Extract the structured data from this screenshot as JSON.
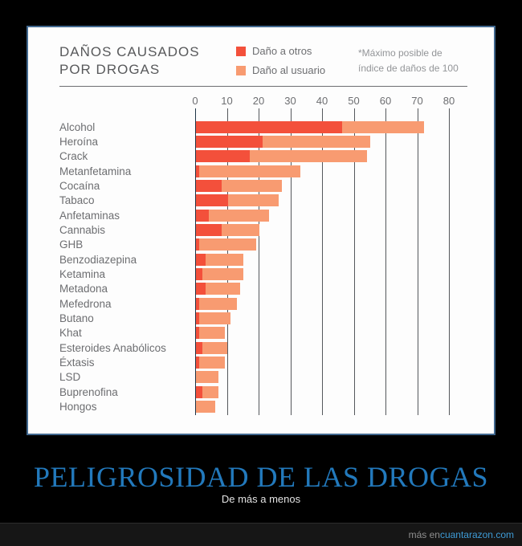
{
  "panel": {
    "title_line1": "DAÑOS CAUSADOS",
    "title_line2": "POR DROGAS",
    "note_line1": "*Máximo posible de",
    "note_line2": "índice de daños de 100"
  },
  "chart_data": {
    "type": "bar",
    "orientation": "horizontal",
    "stacked": true,
    "title": "DAÑOS CAUSADOS POR DROGAS",
    "note": "*Máximo posible de índice de daños de 100",
    "xlim": [
      0,
      95
    ],
    "xticks": [
      0,
      10,
      20,
      30,
      40,
      50,
      60,
      70,
      80
    ],
    "grid": "vertical",
    "legend_position": "top",
    "categories": [
      "Alcohol",
      "Heroína",
      "Crack",
      "Metanfetamina",
      "Cocaína",
      "Tabaco",
      "Anfetaminas",
      "Cannabis",
      "GHB",
      "Benzodiazepina",
      "Ketamina",
      "Metadona",
      "Mefedrona",
      "Butano",
      "Khat",
      "Esteroides Anabólicos",
      "Éxtasis",
      "LSD",
      "Buprenofina",
      "Hongos"
    ],
    "series": [
      {
        "name": "Daño a otros",
        "color": "#f3503b",
        "values": [
          46,
          21,
          17,
          1,
          8,
          10,
          4,
          8,
          1,
          3,
          2,
          3,
          1,
          1,
          1,
          2,
          1,
          0,
          2,
          0
        ]
      },
      {
        "name": "Daño al usuario",
        "color": "#f89b71",
        "values": [
          26,
          34,
          37,
          32,
          19,
          16,
          19,
          12,
          18,
          12,
          13,
          11,
          12,
          10,
          8,
          8,
          8,
          7,
          5,
          6
        ]
      }
    ],
    "totals": [
      72,
      55,
      54,
      33,
      27,
      26,
      23,
      20,
      19,
      15,
      15,
      14,
      13,
      11,
      9,
      10,
      9,
      7,
      7,
      6
    ],
    "gridline_color": "#55585c",
    "zero_line_color": "#1f3547"
  },
  "caption": {
    "title": "PELIGROSIDAD DE LAS DROGAS",
    "title_color": "#2279bc",
    "subtitle": "De más a menos"
  },
  "footer": {
    "prefix": "más en ",
    "site": "cuantarazon.com",
    "site_color": "#3e9bd6"
  }
}
